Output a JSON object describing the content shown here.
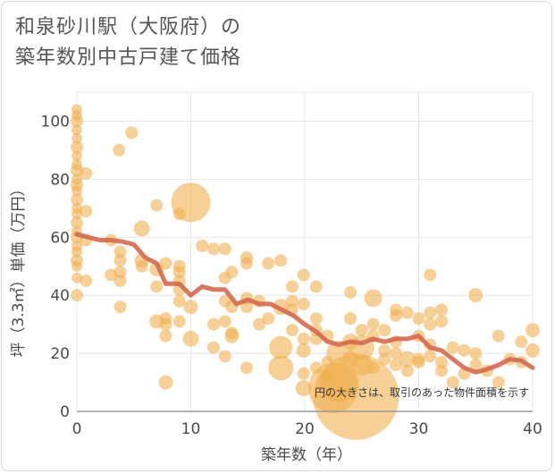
{
  "chart_data": {
    "type": "scatter",
    "title": "和泉砂川駅（大阪府）の\n築年数別中古戸建て価格",
    "xlabel": "築年数（年）",
    "ylabel": "坪（3.3㎡）単価（万円）",
    "xlim": [
      0,
      40
    ],
    "ylim": [
      0,
      110
    ],
    "xticks": [
      "0",
      "10",
      "20",
      "30",
      "40"
    ],
    "yticks": [
      "0",
      "20",
      "40",
      "60",
      "80",
      "100"
    ],
    "grid": true,
    "annotation": "円の大きさは、取引のあった物件面積を示す",
    "colors": {
      "bubble": "#f0b050",
      "line": "#d4694e",
      "grid": "#e8e8e8"
    },
    "series": [
      {
        "kind": "scatter",
        "points": [
          {
            "x": 0,
            "y": 104,
            "s": 6
          },
          {
            "x": 0,
            "y": 102,
            "s": 6
          },
          {
            "x": 0,
            "y": 100,
            "s": 7
          },
          {
            "x": 0,
            "y": 97,
            "s": 6
          },
          {
            "x": 0,
            "y": 94,
            "s": 6
          },
          {
            "x": 0,
            "y": 91,
            "s": 7
          },
          {
            "x": 0,
            "y": 88,
            "s": 6
          },
          {
            "x": 0,
            "y": 85,
            "s": 6
          },
          {
            "x": 0,
            "y": 83,
            "s": 7
          },
          {
            "x": 0,
            "y": 80,
            "s": 6
          },
          {
            "x": 0,
            "y": 78,
            "s": 7
          },
          {
            "x": 0,
            "y": 76,
            "s": 6
          },
          {
            "x": 0,
            "y": 73,
            "s": 7
          },
          {
            "x": 0,
            "y": 70,
            "s": 6
          },
          {
            "x": 0,
            "y": 68,
            "s": 6
          },
          {
            "x": 0,
            "y": 65,
            "s": 7
          },
          {
            "x": 0,
            "y": 62,
            "s": 6
          },
          {
            "x": 0,
            "y": 60,
            "s": 7
          },
          {
            "x": 0,
            "y": 57,
            "s": 6
          },
          {
            "x": 0,
            "y": 55,
            "s": 6
          },
          {
            "x": 0,
            "y": 52,
            "s": 7
          },
          {
            "x": 0,
            "y": 50,
            "s": 6
          },
          {
            "x": 0,
            "y": 46,
            "s": 6
          },
          {
            "x": 0,
            "y": 40,
            "s": 7
          },
          {
            "x": 0.8,
            "y": 82,
            "s": 7
          },
          {
            "x": 0.8,
            "y": 69,
            "s": 7
          },
          {
            "x": 0.8,
            "y": 59,
            "s": 7
          },
          {
            "x": 0.8,
            "y": 45,
            "s": 7
          },
          {
            "x": 3.7,
            "y": 90,
            "s": 7
          },
          {
            "x": 4.8,
            "y": 96,
            "s": 7
          },
          {
            "x": 3,
            "y": 59,
            "s": 7
          },
          {
            "x": 3,
            "y": 47,
            "s": 7
          },
          {
            "x": 3.8,
            "y": 55,
            "s": 7
          },
          {
            "x": 3.8,
            "y": 52,
            "s": 7
          },
          {
            "x": 3.8,
            "y": 48,
            "s": 7
          },
          {
            "x": 3.8,
            "y": 45,
            "s": 7
          },
          {
            "x": 3.8,
            "y": 36,
            "s": 7
          },
          {
            "x": 5.7,
            "y": 63,
            "s": 9
          },
          {
            "x": 5.7,
            "y": 52,
            "s": 8
          },
          {
            "x": 5.7,
            "y": 50,
            "s": 7
          },
          {
            "x": 7,
            "y": 71,
            "s": 7
          },
          {
            "x": 7,
            "y": 49,
            "s": 8
          },
          {
            "x": 7,
            "y": 43,
            "s": 7
          },
          {
            "x": 7,
            "y": 31,
            "s": 8
          },
          {
            "x": 7.8,
            "y": 32,
            "s": 7
          },
          {
            "x": 7.8,
            "y": 30,
            "s": 7
          },
          {
            "x": 7.8,
            "y": 26,
            "s": 7
          },
          {
            "x": 7.8,
            "y": 10,
            "s": 8
          },
          {
            "x": 7.8,
            "y": 51,
            "s": 7
          },
          {
            "x": 9,
            "y": 68,
            "s": 7
          },
          {
            "x": 9,
            "y": 50,
            "s": 7
          },
          {
            "x": 9,
            "y": 48,
            "s": 7
          },
          {
            "x": 9,
            "y": 45,
            "s": 7
          },
          {
            "x": 9,
            "y": 42,
            "s": 7
          },
          {
            "x": 9,
            "y": 38,
            "s": 7
          },
          {
            "x": 9,
            "y": 31,
            "s": 7
          },
          {
            "x": 10,
            "y": 72,
            "s": 22
          },
          {
            "x": 10,
            "y": 36,
            "s": 8
          },
          {
            "x": 10,
            "y": 25,
            "s": 9
          },
          {
            "x": 11,
            "y": 57,
            "s": 7
          },
          {
            "x": 12,
            "y": 56,
            "s": 7
          },
          {
            "x": 12,
            "y": 30,
            "s": 7
          },
          {
            "x": 12,
            "y": 22,
            "s": 7
          },
          {
            "x": 13,
            "y": 56,
            "s": 7
          },
          {
            "x": 13,
            "y": 46,
            "s": 7
          },
          {
            "x": 13,
            "y": 38,
            "s": 7
          },
          {
            "x": 13,
            "y": 31,
            "s": 7
          },
          {
            "x": 13,
            "y": 19,
            "s": 7
          },
          {
            "x": 13.6,
            "y": 48,
            "s": 7
          },
          {
            "x": 13.6,
            "y": 36,
            "s": 7
          },
          {
            "x": 13.6,
            "y": 27,
            "s": 7
          },
          {
            "x": 13.6,
            "y": 26,
            "s": 8
          },
          {
            "x": 14.9,
            "y": 53,
            "s": 7
          },
          {
            "x": 14.9,
            "y": 51,
            "s": 7
          },
          {
            "x": 14.9,
            "y": 39,
            "s": 7
          },
          {
            "x": 14.9,
            "y": 36,
            "s": 7
          },
          {
            "x": 14.9,
            "y": 15,
            "s": 7
          },
          {
            "x": 16,
            "y": 38,
            "s": 7
          },
          {
            "x": 16,
            "y": 30,
            "s": 7
          },
          {
            "x": 16.8,
            "y": 51,
            "s": 7
          },
          {
            "x": 16.8,
            "y": 32,
            "s": 7
          },
          {
            "x": 17.9,
            "y": 52,
            "s": 7
          },
          {
            "x": 17.9,
            "y": 36,
            "s": 9
          },
          {
            "x": 17.9,
            "y": 22,
            "s": 13
          },
          {
            "x": 17.9,
            "y": 15,
            "s": 14
          },
          {
            "x": 18.9,
            "y": 43,
            "s": 7
          },
          {
            "x": 18.9,
            "y": 38,
            "s": 7
          },
          {
            "x": 18.9,
            "y": 35,
            "s": 7
          },
          {
            "x": 18.9,
            "y": 28,
            "s": 7
          },
          {
            "x": 19.9,
            "y": 47,
            "s": 7
          },
          {
            "x": 19.9,
            "y": 37,
            "s": 7
          },
          {
            "x": 19.9,
            "y": 25,
            "s": 7
          },
          {
            "x": 19.9,
            "y": 21,
            "s": 8
          },
          {
            "x": 19.9,
            "y": 13,
            "s": 7
          },
          {
            "x": 19.9,
            "y": 8,
            "s": 9
          },
          {
            "x": 21,
            "y": 43,
            "s": 7
          },
          {
            "x": 21,
            "y": 32,
            "s": 7
          },
          {
            "x": 21,
            "y": 28,
            "s": 7
          },
          {
            "x": 21,
            "y": 25,
            "s": 7
          },
          {
            "x": 21,
            "y": 15,
            "s": 7
          },
          {
            "x": 22,
            "y": 26,
            "s": 7
          },
          {
            "x": 22,
            "y": 17,
            "s": 7
          },
          {
            "x": 22,
            "y": 12,
            "s": 7
          },
          {
            "x": 22.5,
            "y": 8,
            "s": 28
          },
          {
            "x": 23,
            "y": 10,
            "s": 22
          },
          {
            "x": 23,
            "y": 20,
            "s": 14
          },
          {
            "x": 24,
            "y": 41,
            "s": 7
          },
          {
            "x": 24,
            "y": 32,
            "s": 7
          },
          {
            "x": 24,
            "y": 24,
            "s": 9
          },
          {
            "x": 24,
            "y": 18,
            "s": 9
          },
          {
            "x": 24.5,
            "y": 5,
            "s": 48
          },
          {
            "x": 25,
            "y": 22,
            "s": 14
          },
          {
            "x": 25,
            "y": 16,
            "s": 12
          },
          {
            "x": 25,
            "y": 28,
            "s": 7
          },
          {
            "x": 26,
            "y": 39,
            "s": 10
          },
          {
            "x": 26,
            "y": 30,
            "s": 7
          },
          {
            "x": 26,
            "y": 26,
            "s": 7
          },
          {
            "x": 26,
            "y": 15,
            "s": 7
          },
          {
            "x": 27,
            "y": 28,
            "s": 7
          },
          {
            "x": 27,
            "y": 21,
            "s": 7
          },
          {
            "x": 27,
            "y": 18,
            "s": 7
          },
          {
            "x": 28,
            "y": 35,
            "s": 7
          },
          {
            "x": 28,
            "y": 33,
            "s": 7
          },
          {
            "x": 28,
            "y": 24,
            "s": 7
          },
          {
            "x": 28,
            "y": 20,
            "s": 7
          },
          {
            "x": 28,
            "y": 16,
            "s": 7
          },
          {
            "x": 29,
            "y": 34,
            "s": 7
          },
          {
            "x": 29,
            "y": 18,
            "s": 9
          },
          {
            "x": 29,
            "y": 14,
            "s": 7
          },
          {
            "x": 30,
            "y": 32,
            "s": 7
          },
          {
            "x": 30,
            "y": 26,
            "s": 7
          },
          {
            "x": 30,
            "y": 18,
            "s": 7
          },
          {
            "x": 30,
            "y": 17,
            "s": 7
          },
          {
            "x": 31,
            "y": 47,
            "s": 7
          },
          {
            "x": 31,
            "y": 34,
            "s": 7
          },
          {
            "x": 31,
            "y": 30,
            "s": 7
          },
          {
            "x": 31,
            "y": 23,
            "s": 7
          },
          {
            "x": 31,
            "y": 19,
            "s": 7
          },
          {
            "x": 32,
            "y": 35,
            "s": 7
          },
          {
            "x": 32,
            "y": 31,
            "s": 7
          },
          {
            "x": 32,
            "y": 17,
            "s": 7
          },
          {
            "x": 32,
            "y": 14,
            "s": 7
          },
          {
            "x": 33,
            "y": 22,
            "s": 7
          },
          {
            "x": 33,
            "y": 10,
            "s": 7
          },
          {
            "x": 34,
            "y": 21,
            "s": 7
          },
          {
            "x": 34,
            "y": 13,
            "s": 7
          },
          {
            "x": 35,
            "y": 40,
            "s": 8
          },
          {
            "x": 35,
            "y": 20,
            "s": 7
          },
          {
            "x": 35,
            "y": 16,
            "s": 7
          },
          {
            "x": 36,
            "y": 14,
            "s": 7
          },
          {
            "x": 37,
            "y": 26,
            "s": 7
          },
          {
            "x": 37,
            "y": 10,
            "s": 7
          },
          {
            "x": 38,
            "y": 18,
            "s": 7
          },
          {
            "x": 39,
            "y": 24,
            "s": 7
          },
          {
            "x": 39,
            "y": 17,
            "s": 7
          },
          {
            "x": 40,
            "y": 28,
            "s": 8
          },
          {
            "x": 40,
            "y": 21,
            "s": 8
          }
        ]
      },
      {
        "kind": "line",
        "points": [
          {
            "x": 0,
            "y": 61
          },
          {
            "x": 1,
            "y": 60
          },
          {
            "x": 2,
            "y": 59
          },
          {
            "x": 3,
            "y": 59
          },
          {
            "x": 4,
            "y": 58.5
          },
          {
            "x": 5,
            "y": 57.5
          },
          {
            "x": 6,
            "y": 53
          },
          {
            "x": 7,
            "y": 51
          },
          {
            "x": 7.8,
            "y": 44
          },
          {
            "x": 9,
            "y": 44
          },
          {
            "x": 10,
            "y": 40
          },
          {
            "x": 11,
            "y": 43
          },
          {
            "x": 12,
            "y": 42
          },
          {
            "x": 13,
            "y": 42
          },
          {
            "x": 14,
            "y": 37
          },
          {
            "x": 15,
            "y": 38.5
          },
          {
            "x": 16,
            "y": 37
          },
          {
            "x": 17,
            "y": 37
          },
          {
            "x": 18,
            "y": 35
          },
          {
            "x": 19,
            "y": 33
          },
          {
            "x": 20,
            "y": 30
          },
          {
            "x": 21,
            "y": 27.5
          },
          {
            "x": 22,
            "y": 24
          },
          {
            "x": 23,
            "y": 23
          },
          {
            "x": 24,
            "y": 24
          },
          {
            "x": 25,
            "y": 23.5
          },
          {
            "x": 26,
            "y": 25
          },
          {
            "x": 27,
            "y": 24
          },
          {
            "x": 28,
            "y": 25
          },
          {
            "x": 29,
            "y": 25
          },
          {
            "x": 30,
            "y": 26
          },
          {
            "x": 31,
            "y": 22
          },
          {
            "x": 32,
            "y": 21
          },
          {
            "x": 33,
            "y": 18
          },
          {
            "x": 34,
            "y": 15
          },
          {
            "x": 35,
            "y": 13.5
          },
          {
            "x": 36,
            "y": 14.5
          },
          {
            "x": 37,
            "y": 16
          },
          {
            "x": 38,
            "y": 18
          },
          {
            "x": 39,
            "y": 17.5
          },
          {
            "x": 40,
            "y": 15
          }
        ]
      }
    ]
  }
}
